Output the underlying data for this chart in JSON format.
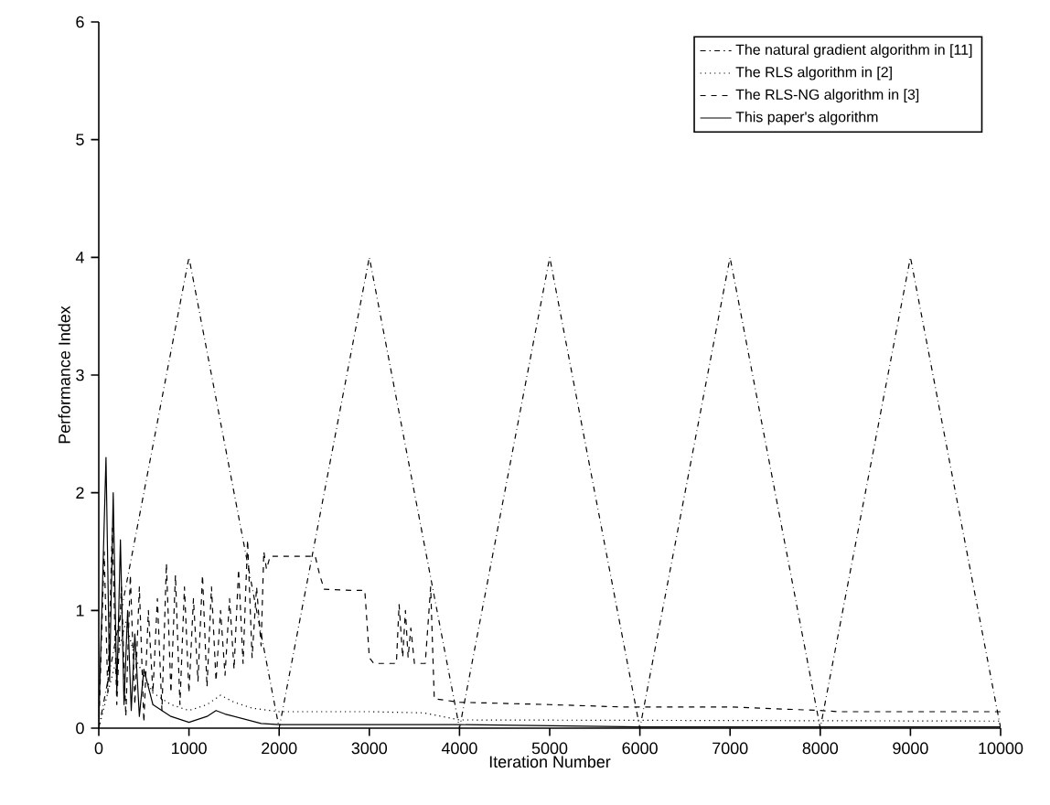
{
  "chart_data": {
    "type": "line",
    "xlabel": "Iteration Number",
    "ylabel": "Performance Index",
    "xlim": [
      0,
      10000
    ],
    "ylim": [
      0,
      6
    ],
    "xticks": [
      0,
      1000,
      2000,
      3000,
      4000,
      5000,
      6000,
      7000,
      8000,
      9000,
      10000
    ],
    "yticks": [
      0,
      1,
      2,
      3,
      4,
      5,
      6
    ],
    "grid": false,
    "legend": "top right",
    "marker": "none",
    "series": [
      {
        "name": "The natural gradient algorithm in [11]",
        "color": "#000000",
        "line_style": "dashdot",
        "x": [
          0,
          1000,
          2000,
          3000,
          4000,
          5000,
          6000,
          7000,
          8000,
          9000,
          10000
        ],
        "values": [
          0,
          4,
          0,
          4,
          0,
          4,
          0,
          4,
          0,
          4,
          0
        ]
      },
      {
        "name": "The RLS algorithm in [2]",
        "color": "#000000",
        "line_style": "dotted",
        "x": [
          0,
          100,
          300,
          400,
          600,
          800,
          1000,
          1200,
          1350,
          1500,
          1700,
          2000,
          3000,
          3600,
          4000,
          10000
        ],
        "values": [
          0,
          0.3,
          0.9,
          0.6,
          0.3,
          0.2,
          0.15,
          0.2,
          0.28,
          0.22,
          0.17,
          0.14,
          0.14,
          0.13,
          0.07,
          0.06
        ]
      },
      {
        "name": "The RLS-NG algorithm in [3]",
        "color": "#000000",
        "line_style": "dashed",
        "x": [
          0,
          60,
          100,
          150,
          200,
          250,
          300,
          350,
          400,
          450,
          500,
          550,
          600,
          650,
          700,
          750,
          800,
          850,
          900,
          950,
          1000,
          1050,
          1100,
          1150,
          1200,
          1250,
          1300,
          1350,
          1400,
          1450,
          1500,
          1550,
          1600,
          1650,
          1700,
          1750,
          1800,
          1830,
          1860,
          1900,
          2400,
          2450,
          2500,
          2800,
          2950,
          3000,
          3050,
          3300,
          3330,
          3370,
          3400,
          3430,
          3460,
          3500,
          3620,
          3680,
          3720,
          4000,
          5000,
          5800,
          6000,
          6200,
          7000,
          8000,
          8200,
          9000,
          10000
        ],
        "values": [
          0,
          1.5,
          0.3,
          1.7,
          0.2,
          1.2,
          0.1,
          1.3,
          0.2,
          1.2,
          0.05,
          1.0,
          0.3,
          1.1,
          0.15,
          1.4,
          0.3,
          1.3,
          0.2,
          1.2,
          0.3,
          1.1,
          0.4,
          1.3,
          0.35,
          1.2,
          0.4,
          1.0,
          0.45,
          1.1,
          0.5,
          1.35,
          0.55,
          1.6,
          0.6,
          1.2,
          0.7,
          1.5,
          1.35,
          1.46,
          1.46,
          1.3,
          1.18,
          1.17,
          1.17,
          0.6,
          0.55,
          0.55,
          1.05,
          0.6,
          1.0,
          0.6,
          0.85,
          0.55,
          0.55,
          1.2,
          0.25,
          0.22,
          0.2,
          0.18,
          0.18,
          0.18,
          0.18,
          0.15,
          0.14,
          0.14,
          0.14
        ]
      },
      {
        "name": "This paper's algorithm",
        "color": "#000000",
        "line_style": "solid",
        "x": [
          0,
          80,
          120,
          160,
          200,
          240,
          280,
          320,
          360,
          400,
          450,
          500,
          600,
          700,
          800,
          1000,
          1200,
          1300,
          1400,
          1600,
          1800,
          2000,
          4000,
          6000,
          10000
        ],
        "values": [
          0.05,
          2.3,
          0.4,
          2.0,
          0.3,
          1.6,
          0.2,
          1.0,
          0.15,
          0.8,
          0.1,
          0.5,
          0.2,
          0.15,
          0.1,
          0.05,
          0.1,
          0.15,
          0.12,
          0.08,
          0.04,
          0.03,
          0.03,
          0.01,
          0.01
        ]
      }
    ]
  }
}
